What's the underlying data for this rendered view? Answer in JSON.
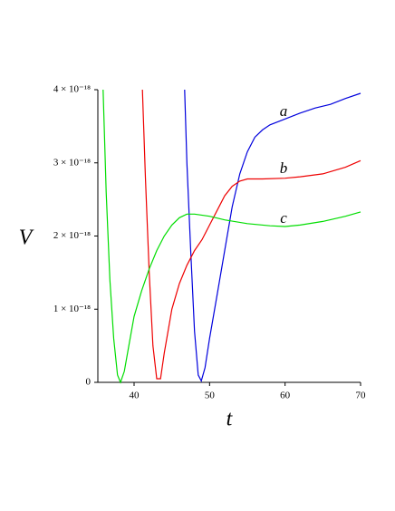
{
  "chart_data": {
    "type": "line",
    "xlabel": "t",
    "ylabel": "V",
    "xlim": [
      35.2,
      70
    ],
    "ylim": [
      0,
      4e-18
    ],
    "xticks": [
      40,
      50,
      60,
      70
    ],
    "yticks": [
      0,
      {
        "value": 1e-18,
        "label": "1 × 10⁻¹⁸"
      },
      {
        "value": 2e-18,
        "label": "2 × 10⁻¹⁸"
      },
      {
        "value": 3e-18,
        "label": "3 × 10⁻¹⁸"
      },
      {
        "value": 4e-18,
        "label": "4 × 10⁻¹⁸"
      }
    ],
    "series": [
      {
        "name": "a",
        "color": "#0000dd",
        "x": [
          46.7,
          47,
          47.5,
          48,
          48.5,
          48.9,
          49.4,
          50,
          51,
          52,
          53,
          54,
          55,
          56,
          57,
          58,
          60,
          62,
          64,
          66,
          68,
          70
        ],
        "values": [
          4e-18,
          3e-18,
          1.8e-18,
          7e-19,
          1e-19,
          2e-20,
          2e-19,
          6e-19,
          1.2e-18,
          1.8e-18,
          2.4e-18,
          2.85e-18,
          3.15e-18,
          3.35e-18,
          3.45e-18,
          3.52e-18,
          3.6e-18,
          3.68e-18,
          3.75e-18,
          3.8e-18,
          3.88e-18,
          3.95e-18
        ]
      },
      {
        "name": "b",
        "color": "#ee0000",
        "x": [
          41.1,
          41.5,
          42,
          42.5,
          43,
          43.5,
          44,
          45,
          46,
          47,
          48,
          49,
          50,
          51,
          52,
          53,
          54,
          55,
          57,
          60,
          62,
          65,
          68,
          70
        ],
        "values": [
          4e-18,
          2.8e-18,
          1.5e-18,
          5e-19,
          5e-20,
          5e-20,
          4e-19,
          1e-18,
          1.35e-18,
          1.6e-18,
          1.8e-18,
          1.95e-18,
          2.15e-18,
          2.35e-18,
          2.55e-18,
          2.68e-18,
          2.75e-18,
          2.78e-18,
          2.78e-18,
          2.79e-18,
          2.81e-18,
          2.85e-18,
          2.94e-18,
          3.03e-18
        ]
      },
      {
        "name": "c",
        "color": "#00dd00",
        "x": [
          35.9,
          36.3,
          36.8,
          37.3,
          37.8,
          38.2,
          38.7,
          39.3,
          40,
          41,
          42,
          43,
          44,
          45,
          46,
          47,
          48,
          50,
          52,
          55,
          58,
          60,
          62,
          65,
          68,
          70
        ],
        "values": [
          4e-18,
          2.6e-18,
          1.4e-18,
          6e-19,
          1e-19,
          0,
          1.5e-19,
          5e-19,
          9e-19,
          1.25e-18,
          1.55e-18,
          1.8e-18,
          2e-18,
          2.15e-18,
          2.25e-18,
          2.3e-18,
          2.3e-18,
          2.27e-18,
          2.22e-18,
          2.17e-18,
          2.14e-18,
          2.13e-18,
          2.15e-18,
          2.2e-18,
          2.27e-18,
          2.33e-18
        ]
      }
    ]
  }
}
